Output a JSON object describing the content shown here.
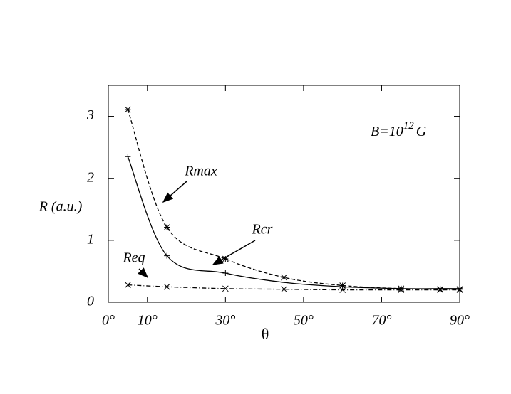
{
  "chart_data": {
    "type": "line",
    "x_label": "θ",
    "y_label": "R (a.u.)",
    "field_label": {
      "base": "B=10",
      "exponent": "12",
      "unit": "G"
    },
    "x": [
      5,
      15,
      30,
      45,
      60,
      75,
      85,
      90
    ],
    "series": [
      {
        "name": "Rmax",
        "color": "#000000",
        "dash": "dashed",
        "marker": "star",
        "values": [
          3.11,
          1.21,
          0.7,
          0.4,
          0.27,
          0.22,
          0.21,
          0.21
        ]
      },
      {
        "name": "Rcr",
        "color": "#000000",
        "dash": "solid",
        "marker": "plus",
        "values": [
          2.35,
          0.75,
          0.47,
          0.32,
          0.25,
          0.22,
          0.22,
          0.22
        ]
      },
      {
        "name": "Req",
        "color": "#000000",
        "dash": "dashdot",
        "marker": "cross",
        "values": [
          0.28,
          0.25,
          0.22,
          0.21,
          0.2,
          0.2,
          0.2,
          0.2
        ]
      }
    ],
    "xlim": [
      0,
      90
    ],
    "xticks": [
      {
        "value": 0,
        "label": "0°"
      },
      {
        "value": 10,
        "label": "10°"
      },
      {
        "value": 30,
        "label": "30°"
      },
      {
        "value": 50,
        "label": "50°"
      },
      {
        "value": 70,
        "label": "70°"
      },
      {
        "value": 90,
        "label": "90°"
      }
    ],
    "ylim": [
      0,
      3.5
    ],
    "yticks": [
      0,
      1,
      2,
      3
    ],
    "grid": false
  }
}
